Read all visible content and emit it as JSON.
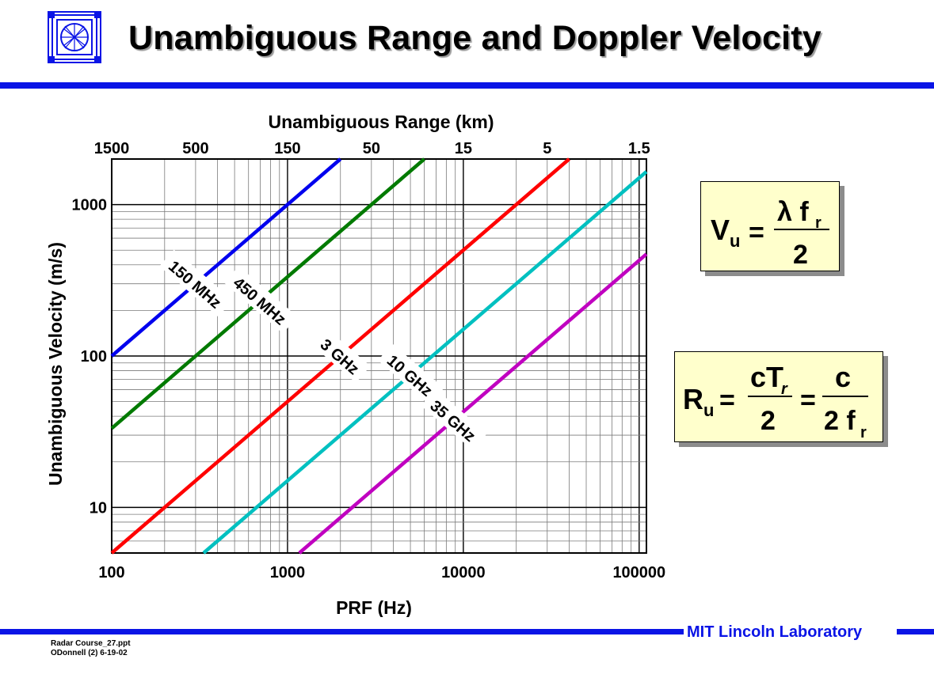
{
  "slide": {
    "title": "Unambiguous Range and Doppler Velocity",
    "footer_org": "MIT Lincoln Laboratory",
    "footer_file": "Radar Course_27.ppt",
    "footer_author": "ODonnell (2) 6-19-02",
    "accent_color": "#0a14e6",
    "formula_bg": "#ffffcc"
  },
  "formulas": {
    "velocity": {
      "lhs": "V",
      "lhs_sub": "u",
      "eq": "=",
      "num": "λ f",
      "num_sub": "r",
      "den": "2"
    },
    "range": {
      "lhs": "R",
      "lhs_sub": "u",
      "eq1": "=",
      "num1": "cT",
      "num1_sub": "r",
      "den1": "2",
      "eq2": "=",
      "num2": "c",
      "den2": "2 f",
      "den2_sub": "r"
    }
  },
  "chart_data": {
    "type": "line",
    "title": "",
    "xlabel": "PRF (Hz)",
    "ylabel": "Unambiguous Velocity (m/s)",
    "x2label": "Unambiguous Range (km)",
    "xscale": "log",
    "yscale": "log",
    "xlim": [
      100,
      110000
    ],
    "ylim": [
      5,
      2000
    ],
    "x_ticks": [
      "100",
      "1000",
      "10000",
      "100000"
    ],
    "y_ticks": [
      "10",
      "100",
      "1000"
    ],
    "x2_ticks": [
      "1500",
      "500",
      "150",
      "50",
      "15",
      "5",
      "1.5"
    ],
    "grid": true,
    "series": [
      {
        "name": "150 MHz",
        "color": "#0000ee",
        "x": [
          100,
          2000
        ],
        "y": [
          100,
          2000
        ]
      },
      {
        "name": "450 MHz",
        "color": "#007a00",
        "x": [
          100,
          6000
        ],
        "y": [
          33.3,
          2000
        ]
      },
      {
        "name": "3 GHz",
        "color": "#ff0000",
        "x": [
          100,
          40000
        ],
        "y": [
          5,
          2000
        ]
      },
      {
        "name": "10 GHz",
        "color": "#00c0c0",
        "x": [
          333,
          110000
        ],
        "y": [
          5,
          1650
        ]
      },
      {
        "name": "35 GHz",
        "color": "#c000c0",
        "x": [
          1167,
          110000
        ],
        "y": [
          5,
          471
        ]
      }
    ]
  }
}
